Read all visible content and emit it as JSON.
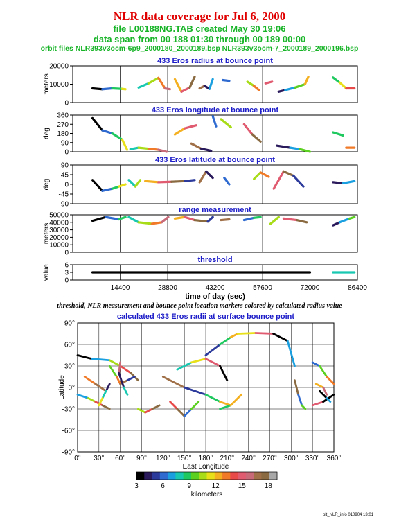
{
  "header": {
    "title": "NLR data coverage for Jul 6, 2000",
    "file_line": "file L00188NG.TAB created May 30 19:06",
    "span_line": "data span from 00 188 01:30 through 00 189 00:00",
    "orbit_line": "orbit files NLR393v3ocm-6p9_2000180_2000189.bsp NLR393v3ocm-7_2000189_2000196.bsp"
  },
  "caption": "threshold, NLR measurement and bounce point location markers colored by calculated radius value",
  "footer": "plt_NLR_info 010904 13:01",
  "colors": {
    "title": "#e00000",
    "subtitle": "#18b428",
    "panel_title": "#1c1cc8"
  },
  "colorbar": {
    "label": "kilometers",
    "ticks": [
      "3",
      "6",
      "9",
      "12",
      "15",
      "18"
    ],
    "range": [
      3,
      19
    ],
    "colors": [
      "#000000",
      "#2a1a5c",
      "#2c3a9c",
      "#2e6ad0",
      "#1aa0e0",
      "#18c8b0",
      "#20c860",
      "#5cd020",
      "#a8dc18",
      "#e8e018",
      "#f4b020",
      "#f07a28",
      "#e84a4a",
      "#e05a70",
      "#c86a78",
      "#a07048",
      "#8a6a40",
      "#a8a8a8"
    ]
  },
  "chart_data": [
    {
      "type": "line",
      "title": "433 Eros radius at bounce point",
      "ylabel": "meters",
      "ylim": [
        0,
        22000
      ],
      "yticks": [
        "0",
        "10000",
        "20000"
      ],
      "segments": [
        {
          "x": [
            6000,
            9000,
            12000,
            15000,
            16000
          ],
          "y": [
            8500,
            8000,
            8500,
            8200,
            8000
          ]
        },
        {
          "x": [
            20000,
            23000,
            26000,
            28000,
            29500
          ],
          "y": [
            9000,
            11500,
            14800,
            8500,
            8000
          ]
        },
        {
          "x": [
            31000,
            33000,
            35500,
            37000
          ],
          "y": [
            14000,
            6500,
            9000,
            15500
          ]
        },
        {
          "x": [
            38500,
            40000,
            41500,
            42500
          ],
          "y": [
            8500,
            10000,
            8200,
            14000
          ]
        },
        {
          "x": [
            45500,
            47500
          ],
          "y": [
            13500,
            13000
          ]
        },
        {
          "x": [
            53000,
            55000,
            56500
          ],
          "y": [
            12500,
            10000,
            7500
          ]
        },
        {
          "x": [
            58500,
            60500
          ],
          "y": [
            11500,
            12500
          ]
        },
        {
          "x": [
            62500,
            64500,
            67500,
            70500,
            71500
          ],
          "y": [
            6500,
            7500,
            9000,
            11000,
            15500
          ]
        },
        {
          "x": [
            79000,
            81000,
            83000,
            85500
          ],
          "y": [
            15000,
            12000,
            8500,
            8500
          ]
        }
      ]
    },
    {
      "type": "line",
      "title": "433 Eros longitude at bounce point",
      "ylabel": "deg",
      "ylim": [
        0,
        360
      ],
      "yticks": [
        "0",
        "90",
        "180",
        "270",
        "360"
      ],
      "segments": [
        {
          "x": [
            6000,
            9000,
            12000,
            15000,
            16500
          ],
          "y": [
            330,
            210,
            180,
            120,
            20
          ]
        },
        {
          "x": [
            17500,
            20000,
            23000,
            26000,
            28500
          ],
          "y": [
            25,
            40,
            30,
            20,
            0
          ]
        },
        {
          "x": [
            31000,
            34000,
            37500
          ],
          "y": [
            170,
            230,
            260
          ]
        },
        {
          "x": [
            36000,
            39000,
            42000
          ],
          "y": [
            80,
            30,
            10
          ]
        },
        {
          "x": [
            42500,
            43500
          ],
          "y": [
            350,
            250
          ]
        },
        {
          "x": [
            45000,
            48000
          ],
          "y": [
            320,
            240
          ]
        },
        {
          "x": [
            52000,
            54500,
            57000
          ],
          "y": [
            270,
            170,
            100
          ]
        },
        {
          "x": [
            62000,
            66000,
            69000,
            72000
          ],
          "y": [
            60,
            40,
            25,
            0
          ]
        },
        {
          "x": [
            79000,
            82000
          ],
          "y": [
            190,
            160
          ]
        },
        {
          "x": [
            83000,
            85500
          ],
          "y": [
            40,
            40
          ]
        }
      ]
    },
    {
      "type": "line",
      "title": "433 Eros latitude at bounce point",
      "ylabel": "deg",
      "ylim": [
        -90,
        90
      ],
      "yticks": [
        "-90",
        "-45",
        "0",
        "45",
        "90"
      ],
      "segments": [
        {
          "x": [
            6000,
            9000,
            12000,
            14000,
            16000
          ],
          "y": [
            20,
            -30,
            -20,
            -10,
            0
          ]
        },
        {
          "x": [
            17000,
            19000,
            20500
          ],
          "y": [
            20,
            -10,
            20
          ]
        },
        {
          "x": [
            22000,
            26000,
            30000,
            34000,
            37000
          ],
          "y": [
            15,
            10,
            12,
            15,
            20
          ]
        },
        {
          "x": [
            38500,
            40500,
            42500
          ],
          "y": [
            10,
            60,
            30
          ]
        },
        {
          "x": [
            46000,
            47500
          ],
          "y": [
            30,
            0
          ]
        },
        {
          "x": [
            55000,
            57000,
            59500
          ],
          "y": [
            25,
            55,
            35
          ]
        },
        {
          "x": [
            61000,
            64000,
            67000,
            70000
          ],
          "y": [
            -20,
            60,
            40,
            -10
          ]
        },
        {
          "x": [
            79000,
            82000,
            85500
          ],
          "y": [
            10,
            5,
            15
          ]
        }
      ]
    },
    {
      "type": "line",
      "title": "range measurement",
      "ylabel": "meters",
      "ylim": [
        0,
        50000
      ],
      "yticks": [
        "0",
        "10000",
        "20000",
        "30000",
        "40000",
        "50000"
      ],
      "segments": [
        {
          "x": [
            6000,
            10000,
            14000,
            16000
          ],
          "y": [
            42000,
            47000,
            44000,
            47000
          ]
        },
        {
          "x": [
            17000,
            20000,
            24000,
            27000,
            29000
          ],
          "y": [
            47000,
            40000,
            38000,
            40000,
            47000
          ]
        },
        {
          "x": [
            31000,
            34000,
            37000,
            41000,
            42500
          ],
          "y": [
            45000,
            47000,
            43000,
            41000,
            47000
          ]
        },
        {
          "x": [
            45000,
            47500
          ],
          "y": [
            43000,
            44000
          ]
        },
        {
          "x": [
            52000,
            55000,
            57000
          ],
          "y": [
            43000,
            46000,
            47000
          ]
        },
        {
          "x": [
            60000,
            62500
          ],
          "y": [
            38000,
            47000
          ]
        },
        {
          "x": [
            64000,
            68000,
            71000
          ],
          "y": [
            45000,
            43000,
            40000
          ]
        },
        {
          "x": [
            79000,
            81000,
            84000,
            85500
          ],
          "y": [
            36000,
            40000,
            45000,
            47000
          ]
        }
      ]
    },
    {
      "type": "line",
      "title": "threshold",
      "ylabel": "value",
      "ylim": [
        0,
        6
      ],
      "yticks": [
        "0",
        "3",
        "6"
      ],
      "xlabel": "time of day (sec)",
      "xlim": [
        0,
        86400
      ],
      "xticks": [
        "14400",
        "28800",
        "43200",
        "57600",
        "72000",
        "86400"
      ],
      "segments": [
        {
          "x": [
            6000,
            72000
          ],
          "y": [
            3,
            3
          ]
        },
        {
          "x": [
            79000,
            85500
          ],
          "y": [
            3,
            3
          ]
        }
      ]
    },
    {
      "type": "scatter",
      "title": "calculated 433 Eros radii at surface bounce point",
      "xlabel": "East Longitude",
      "ylabel": "Latitude",
      "xlim": [
        0,
        360
      ],
      "ylim": [
        -90,
        90
      ],
      "xticks": [
        "0°",
        "30°",
        "60°",
        "90°",
        "120°",
        "150°",
        "180°",
        "210°",
        "240°",
        "270°",
        "300°",
        "330°",
        "360°"
      ],
      "yticks": [
        "-90°",
        "-60°",
        "-30°",
        "0°",
        "30°",
        "60°",
        "90°"
      ],
      "tracks": [
        {
          "lon": [
            0,
            20,
            45,
            60,
            75,
            85
          ],
          "lat": [
            45,
            40,
            38,
            30,
            20,
            10
          ]
        },
        {
          "lon": [
            45,
            55,
            60,
            70,
            80
          ],
          "lat": [
            30,
            15,
            5,
            10,
            15
          ]
        },
        {
          "lon": [
            60,
            58,
            65,
            70
          ],
          "lat": [
            35,
            20,
            0,
            -10
          ]
        },
        {
          "lon": [
            0,
            15,
            25,
            35,
            45
          ],
          "lat": [
            -10,
            -15,
            -20,
            -25,
            -30
          ]
        },
        {
          "lon": [
            10,
            25,
            40
          ],
          "lat": [
            15,
            5,
            -5
          ]
        },
        {
          "lon": [
            45,
            40,
            35,
            30
          ],
          "lat": [
            5,
            -5,
            -15,
            -25
          ]
        },
        {
          "lon": [
            85,
            95,
            105,
            115
          ],
          "lat": [
            -30,
            -35,
            -30,
            -25
          ]
        },
        {
          "lon": [
            120,
            150,
            180,
            200,
            215
          ],
          "lat": [
            15,
            0,
            -10,
            -20,
            -25
          ]
        },
        {
          "lon": [
            140,
            160,
            180,
            200,
            210
          ],
          "lat": [
            25,
            35,
            40,
            30,
            10
          ]
        },
        {
          "lon": [
            130,
            140,
            150,
            160,
            170
          ],
          "lat": [
            -20,
            -30,
            -40,
            -30,
            -20
          ]
        },
        {
          "lon": [
            180,
            200,
            215,
            225
          ],
          "lat": [
            45,
            60,
            70,
            75
          ]
        },
        {
          "lon": [
            225,
            250,
            275,
            295,
            305
          ],
          "lat": [
            75,
            76,
            75,
            65,
            30
          ]
        },
        {
          "lon": [
            305,
            310,
            315,
            320
          ],
          "lat": [
            10,
            -10,
            -25,
            -30
          ]
        },
        {
          "lon": [
            200,
            215,
            230
          ],
          "lat": [
            -30,
            -25,
            -10
          ]
        },
        {
          "lon": [
            330,
            345,
            360
          ],
          "lat": [
            -25,
            -20,
            -10
          ]
        },
        {
          "lon": [
            330,
            340,
            350,
            360
          ],
          "lat": [
            35,
            30,
            15,
            5
          ]
        },
        {
          "lon": [
            335,
            345,
            350
          ],
          "lat": [
            5,
            0,
            -10
          ]
        },
        {
          "lon": [
            340,
            350,
            355
          ],
          "lat": [
            -5,
            -15,
            -20
          ]
        }
      ]
    }
  ]
}
